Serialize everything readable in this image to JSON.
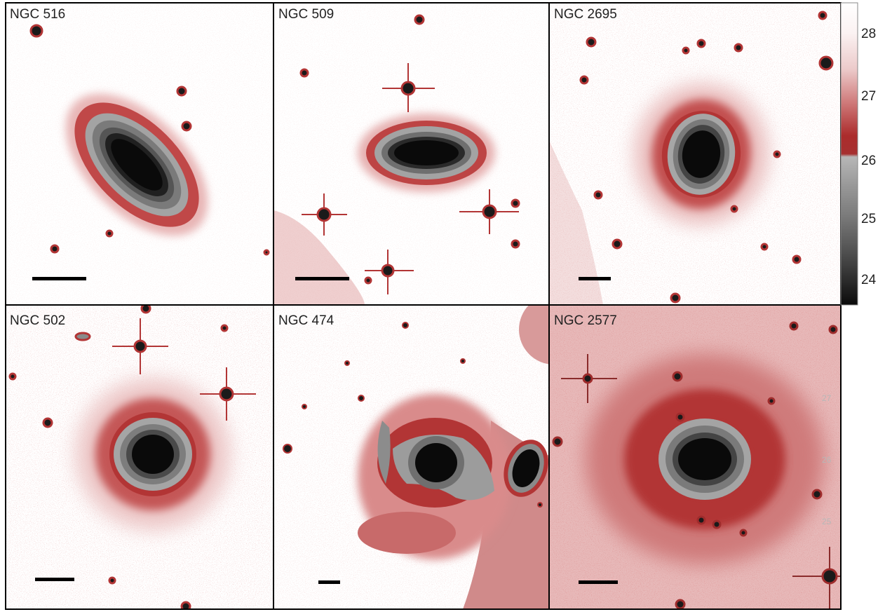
{
  "panels": [
    {
      "label": "NGC 516"
    },
    {
      "label": "NGC 509"
    },
    {
      "label": "NGC 2695"
    },
    {
      "label": "NGC 502"
    },
    {
      "label": "NGC 474"
    },
    {
      "label": "NGC 2577"
    }
  ],
  "colorbar": {
    "ticks": [
      "28",
      "27",
      "26",
      "25",
      "24"
    ],
    "stops": [
      "#ffffff",
      "#f1dcdc",
      "#d89494",
      "#b83c3c",
      "#a82a2a",
      "#9e9e9e",
      "#7a7a7a",
      "#555555",
      "#333333",
      "#111111"
    ]
  },
  "faint_labels": [
    "27",
    "26",
    "25"
  ],
  "colors": {
    "background": "#ffffff",
    "halo_red": "#b23535",
    "core_grey": "#8a8a8a",
    "core_black": "#0a0a0a",
    "frame": "#000000"
  }
}
